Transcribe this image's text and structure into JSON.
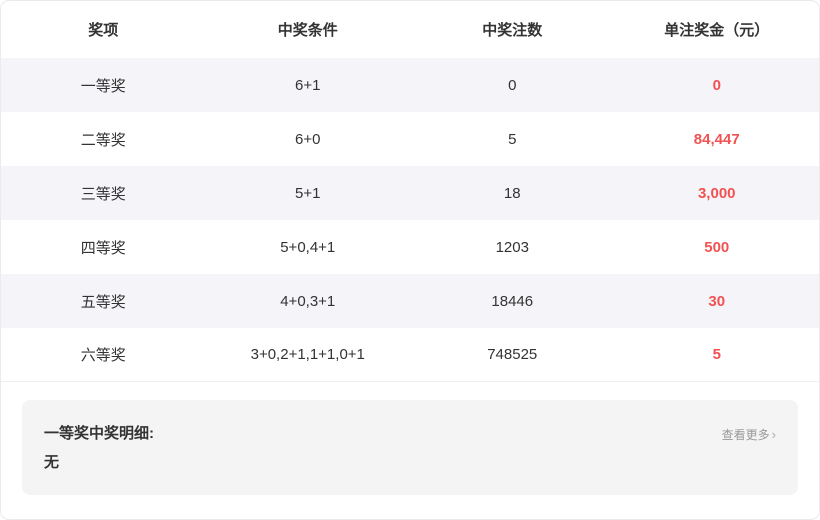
{
  "table": {
    "headers": [
      "奖项",
      "中奖条件",
      "中奖注数",
      "单注奖金（元）"
    ],
    "rows": [
      {
        "prize": "一等奖",
        "condition": "6+1",
        "count": "0",
        "amount": "0"
      },
      {
        "prize": "二等奖",
        "condition": "6+0",
        "count": "5",
        "amount": "84,447"
      },
      {
        "prize": "三等奖",
        "condition": "5+1",
        "count": "18",
        "amount": "3,000"
      },
      {
        "prize": "四等奖",
        "condition": "5+0,4+1",
        "count": "1203",
        "amount": "500"
      },
      {
        "prize": "五等奖",
        "condition": "4+0,3+1",
        "count": "18446",
        "amount": "30"
      },
      {
        "prize": "六等奖",
        "condition": "3+0,2+1,1+1,0+1",
        "count": "748525",
        "amount": "5"
      }
    ]
  },
  "details": {
    "label": "一等奖中奖明细:",
    "value": "无",
    "more_label": "查看更多",
    "more_icon": "›"
  },
  "colors": {
    "accent_red": "#f25252",
    "row_alt_bg": "#f4f4f9",
    "panel_bg": "#f4f4f4",
    "text_dark": "#333333",
    "text_muted": "#999999",
    "border": "#ebebeb"
  }
}
